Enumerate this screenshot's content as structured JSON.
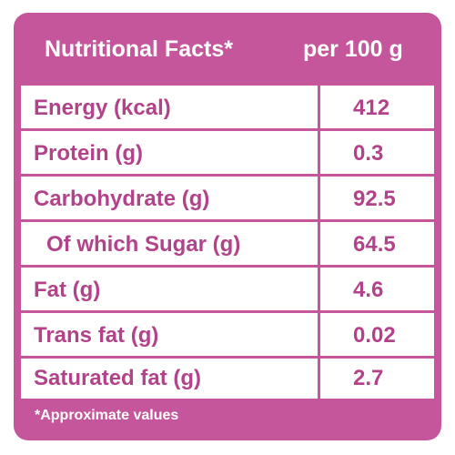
{
  "header": {
    "title": "Nutritional Facts*",
    "unit": "per 100 g"
  },
  "rows": [
    {
      "name": "Energy (kcal)",
      "value": "412",
      "indent": false
    },
    {
      "name": "Protein (g)",
      "value": "0.3",
      "indent": false
    },
    {
      "name": "Carbohydrate (g)",
      "value": "92.5",
      "indent": false
    },
    {
      "name": "Of which Sugar (g)",
      "value": "64.5",
      "indent": true
    },
    {
      "name": "Fat (g)",
      "value": "4.6",
      "indent": false
    },
    {
      "name": "Trans fat (g)",
      "value": "0.02",
      "indent": false
    },
    {
      "name": "Saturated fat (g)",
      "value": "2.7",
      "indent": false
    }
  ],
  "footnote": "*Approximate values",
  "colors": {
    "frame": "#c5569b",
    "text": "#b2438a",
    "background": "#ffffff"
  }
}
